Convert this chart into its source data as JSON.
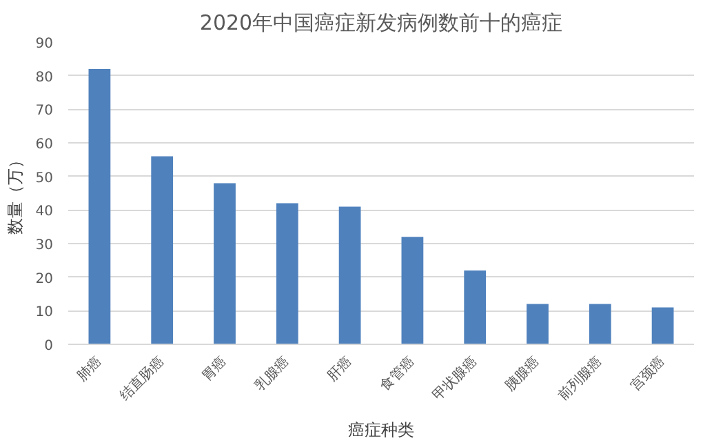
{
  "chart_data": {
    "type": "bar",
    "title": "2020年中国癌症新发病例数前十的癌症",
    "xlabel": "癌症种类",
    "ylabel": "数量（万）",
    "categories": [
      "肺癌",
      "结直肠癌",
      "胃癌",
      "乳腺癌",
      "肝癌",
      "食管癌",
      "甲状腺癌",
      "胰腺癌",
      "前列腺癌",
      "宫颈癌"
    ],
    "values": [
      82,
      56,
      48,
      42,
      41,
      32,
      22,
      12,
      12,
      11
    ],
    "color": "#4f81bd",
    "ylim": [
      0,
      90
    ],
    "yticks": [
      0,
      10,
      20,
      30,
      40,
      50,
      60,
      70,
      80,
      90
    ],
    "grid": "y"
  }
}
